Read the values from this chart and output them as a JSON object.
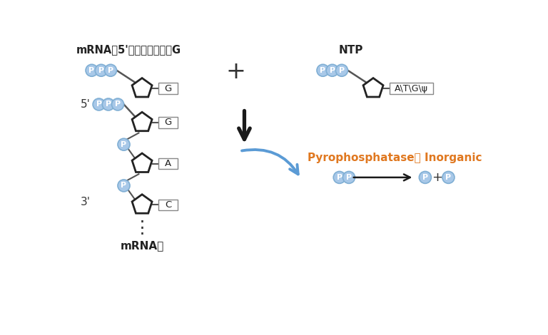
{
  "title": "mRNA鐲5'端第一个核苷酸G",
  "ntp_label": "NTP",
  "mrna_chain_label": "mRNA链",
  "pyro_label": "Pyrophosphatase， Inorganic",
  "p_circle_color": "#a8c8e8",
  "p_circle_edge": "#80afd4",
  "p_text_color": "#ffffff",
  "pentagon_fill": "#ffffff",
  "pentagon_edge": "#222222",
  "arrow_color": "#1a1a1a",
  "curved_arrow_color": "#5b9bd5",
  "orange_color": "#e07820",
  "label_5prime": "5'",
  "label_3prime": "3'",
  "plus_color": "#333333",
  "line_color": "#555555",
  "box_edge_color": "#888888",
  "text_color": "#222222"
}
